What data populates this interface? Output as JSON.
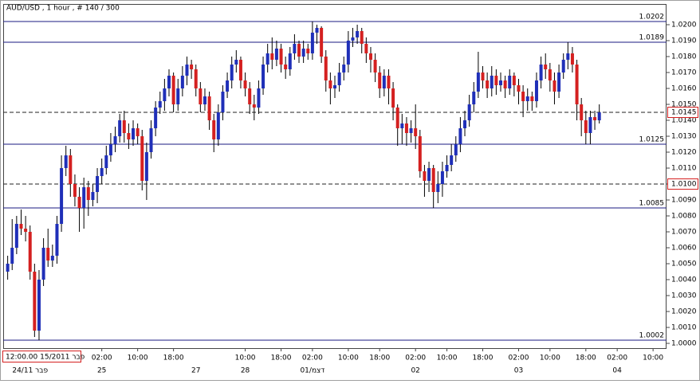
{
  "chart_data": {
    "type": "candlestick",
    "title": "AUD/USD , 1 hour , # 140 / 300",
    "cursor_label": "12:00.00 15/2011 פבר",
    "up_color": "#1f2fb8",
    "down_color": "#d42020",
    "ylim": [
      0.9997,
      1.0213
    ],
    "xlim": [
      -1,
      147
    ],
    "yticks": [
      {
        "value": 1.0,
        "label": "1.0000"
      },
      {
        "value": 1.001,
        "label": "1.0010"
      },
      {
        "value": 1.002,
        "label": "1.0020"
      },
      {
        "value": 1.003,
        "label": "1.0030"
      },
      {
        "value": 1.004,
        "label": "1.0040"
      },
      {
        "value": 1.005,
        "label": "1.0050"
      },
      {
        "value": 1.006,
        "label": "1.0060"
      },
      {
        "value": 1.007,
        "label": "1.0070"
      },
      {
        "value": 1.008,
        "label": "1.0080"
      },
      {
        "value": 1.009,
        "label": "1.0090"
      },
      {
        "value": 1.01,
        "label": "1.0100"
      },
      {
        "value": 1.011,
        "label": "1.0110"
      },
      {
        "value": 1.012,
        "label": "1.0120"
      },
      {
        "value": 1.013,
        "label": "1.0130"
      },
      {
        "value": 1.014,
        "label": "1.0140"
      },
      {
        "value": 1.015,
        "label": "1.0150"
      },
      {
        "value": 1.016,
        "label": "1.0160"
      },
      {
        "value": 1.017,
        "label": "1.0170"
      },
      {
        "value": 1.018,
        "label": "1.0180"
      },
      {
        "value": 1.019,
        "label": "1.0190"
      },
      {
        "value": 1.02,
        "label": "1.0200"
      }
    ],
    "xticks": [
      {
        "value": 21,
        "label": "02:00"
      },
      {
        "value": 29,
        "label": "10:00"
      },
      {
        "value": 37,
        "label": "18:00"
      },
      {
        "value": 53,
        "label": "10:00"
      },
      {
        "value": 61,
        "label": "18:00"
      },
      {
        "value": 68,
        "label": "02:00"
      },
      {
        "value": 76,
        "label": "10:00"
      },
      {
        "value": 83,
        "label": "18:00"
      },
      {
        "value": 91,
        "label": "02:00"
      },
      {
        "value": 98,
        "label": "10:00"
      },
      {
        "value": 106,
        "label": "18:00"
      },
      {
        "value": 114,
        "label": "02:00"
      },
      {
        "value": 121,
        "label": "10:00"
      },
      {
        "value": 129,
        "label": "18:00"
      },
      {
        "value": 136,
        "label": "02:00"
      },
      {
        "value": 144,
        "label": "10:00"
      }
    ],
    "xticks2": [
      {
        "value": 5,
        "label": "24/11 פבר"
      },
      {
        "value": 21,
        "label": "25"
      },
      {
        "value": 42,
        "label": "27"
      },
      {
        "value": 53,
        "label": "28"
      },
      {
        "value": 68,
        "label": "01/דצמ"
      },
      {
        "value": 91,
        "label": "02"
      },
      {
        "value": 114,
        "label": "03"
      },
      {
        "value": 136,
        "label": "04"
      }
    ],
    "levels": [
      {
        "value": 1.0202,
        "label": "1.0202",
        "style": "solid"
      },
      {
        "value": 1.0189,
        "label": "1.0189",
        "style": "solid"
      },
      {
        "value": 1.0145,
        "label": "1.0145",
        "style": "dashed"
      },
      {
        "value": 1.0125,
        "label": "1.0125",
        "style": "solid"
      },
      {
        "value": 1.01,
        "label": "1.0100",
        "style": "dashed"
      },
      {
        "value": 1.0085,
        "label": "1.0085",
        "style": "solid"
      },
      {
        "value": 1.0002,
        "label": "1.0002",
        "style": "solid"
      }
    ],
    "candles": [
      [
        1.0045,
        1.0055,
        1.004,
        1.005
      ],
      [
        1.005,
        1.0078,
        1.0046,
        1.006
      ],
      [
        1.006,
        1.008,
        1.0056,
        1.0075
      ],
      [
        1.0075,
        1.0084,
        1.0068,
        1.0072
      ],
      [
        1.0072,
        1.008,
        1.0064,
        1.007
      ],
      [
        1.007,
        1.0074,
        1.004,
        1.0045
      ],
      [
        1.0045,
        1.005,
        1.0004,
        1.0008
      ],
      [
        1.0008,
        1.0046,
        1.0002,
        1.004
      ],
      [
        1.004,
        1.0066,
        1.0036,
        1.006
      ],
      [
        1.006,
        1.0072,
        1.0048,
        1.0052
      ],
      [
        1.0052,
        1.0062,
        1.0048,
        1.0055
      ],
      [
        1.0055,
        1.008,
        1.005,
        1.0075
      ],
      [
        1.0075,
        1.0118,
        1.007,
        1.011
      ],
      [
        1.011,
        1.0124,
        1.0105,
        1.0118
      ],
      [
        1.0118,
        1.0122,
        1.0092,
        1.01
      ],
      [
        1.01,
        1.0106,
        1.0086,
        1.0092
      ],
      [
        1.0092,
        1.0098,
        1.007,
        1.0085
      ],
      [
        1.0085,
        1.0104,
        1.0072,
        1.0098
      ],
      [
        1.0098,
        1.0102,
        1.008,
        1.009
      ],
      [
        1.009,
        1.01,
        1.0086,
        1.0095
      ],
      [
        1.0095,
        1.011,
        1.0088,
        1.0105
      ],
      [
        1.0105,
        1.0116,
        1.01,
        1.011
      ],
      [
        1.011,
        1.0124,
        1.0106,
        1.0118
      ],
      [
        1.0118,
        1.0132,
        1.0114,
        1.0125
      ],
      [
        1.0125,
        1.0136,
        1.012,
        1.013
      ],
      [
        1.013,
        1.0144,
        1.0126,
        1.014
      ],
      [
        1.014,
        1.0146,
        1.0126,
        1.0132
      ],
      [
        1.0132,
        1.0138,
        1.0122,
        1.0128
      ],
      [
        1.0128,
        1.014,
        1.0124,
        1.0135
      ],
      [
        1.0135,
        1.0138,
        1.0125,
        1.013
      ],
      [
        1.013,
        1.0134,
        1.0096,
        1.0102
      ],
      [
        1.0102,
        1.0126,
        1.009,
        1.012
      ],
      [
        1.012,
        1.014,
        1.0116,
        1.0135
      ],
      [
        1.0135,
        1.0152,
        1.013,
        1.0148
      ],
      [
        1.0148,
        1.0158,
        1.0144,
        1.0152
      ],
      [
        1.0152,
        1.0166,
        1.0146,
        1.016
      ],
      [
        1.016,
        1.0172,
        1.0155,
        1.0168
      ],
      [
        1.0168,
        1.017,
        1.0145,
        1.015
      ],
      [
        1.015,
        1.0166,
        1.0146,
        1.016
      ],
      [
        1.016,
        1.0174,
        1.0155,
        1.0168
      ],
      [
        1.0168,
        1.018,
        1.0162,
        1.0175
      ],
      [
        1.0175,
        1.0178,
        1.0166,
        1.0172
      ],
      [
        1.0172,
        1.0175,
        1.0155,
        1.016
      ],
      [
        1.016,
        1.0164,
        1.0145,
        1.015
      ],
      [
        1.015,
        1.016,
        1.0146,
        1.0155
      ],
      [
        1.0155,
        1.0158,
        1.0134,
        1.014
      ],
      [
        1.014,
        1.0144,
        1.012,
        1.0128
      ],
      [
        1.0128,
        1.015,
        1.0124,
        1.0145
      ],
      [
        1.0145,
        1.0162,
        1.014,
        1.0158
      ],
      [
        1.0158,
        1.017,
        1.0154,
        1.0165
      ],
      [
        1.0165,
        1.018,
        1.016,
        1.0175
      ],
      [
        1.0175,
        1.0184,
        1.017,
        1.0178
      ],
      [
        1.0178,
        1.018,
        1.016,
        1.0165
      ],
      [
        1.0165,
        1.017,
        1.0155,
        1.016
      ],
      [
        1.016,
        1.0164,
        1.0144,
        1.015
      ],
      [
        1.015,
        1.0156,
        1.014,
        1.0148
      ],
      [
        1.0148,
        1.0165,
        1.0144,
        1.016
      ],
      [
        1.016,
        1.018,
        1.0156,
        1.0175
      ],
      [
        1.0175,
        1.0188,
        1.017,
        1.0182
      ],
      [
        1.0182,
        1.0192,
        1.0172,
        1.0178
      ],
      [
        1.0178,
        1.019,
        1.0174,
        1.0185
      ],
      [
        1.0185,
        1.0188,
        1.017,
        1.0175
      ],
      [
        1.0175,
        1.018,
        1.0166,
        1.0172
      ],
      [
        1.0172,
        1.0186,
        1.0168,
        1.0182
      ],
      [
        1.0182,
        1.0194,
        1.0178,
        1.0188
      ],
      [
        1.0188,
        1.019,
        1.0176,
        1.018
      ],
      [
        1.018,
        1.019,
        1.0176,
        1.0185
      ],
      [
        1.0185,
        1.0188,
        1.0178,
        1.0182
      ],
      [
        1.0182,
        1.0202,
        1.0178,
        1.0195
      ],
      [
        1.0195,
        1.02,
        1.0188,
        1.0198
      ],
      [
        1.0198,
        1.0199,
        1.0176,
        1.018
      ],
      [
        1.018,
        1.0184,
        1.0158,
        1.0165
      ],
      [
        1.0165,
        1.017,
        1.015,
        1.016
      ],
      [
        1.016,
        1.0168,
        1.0154,
        1.0162
      ],
      [
        1.0162,
        1.0176,
        1.0158,
        1.017
      ],
      [
        1.017,
        1.018,
        1.0165,
        1.0175
      ],
      [
        1.0175,
        1.0196,
        1.017,
        1.019
      ],
      [
        1.019,
        1.0198,
        1.0186,
        1.0192
      ],
      [
        1.0192,
        1.02,
        1.0188,
        1.0196
      ],
      [
        1.0196,
        1.0198,
        1.0182,
        1.0188
      ],
      [
        1.0188,
        1.0192,
        1.0176,
        1.0182
      ],
      [
        1.0182,
        1.0186,
        1.017,
        1.0178
      ],
      [
        1.0178,
        1.0182,
        1.0164,
        1.017
      ],
      [
        1.017,
        1.0174,
        1.0154,
        1.016
      ],
      [
        1.016,
        1.0172,
        1.0155,
        1.0168
      ],
      [
        1.0168,
        1.0172,
        1.015,
        1.016
      ],
      [
        1.016,
        1.0164,
        1.014,
        1.0148
      ],
      [
        1.0148,
        1.015,
        1.0124,
        1.0135
      ],
      [
        1.0135,
        1.0144,
        1.0125,
        1.0138
      ],
      [
        1.0138,
        1.0142,
        1.0124,
        1.0132
      ],
      [
        1.0132,
        1.014,
        1.0126,
        1.0135
      ],
      [
        1.0135,
        1.015,
        1.0122,
        1.013
      ],
      [
        1.013,
        1.0134,
        1.0104,
        1.0108
      ],
      [
        1.0108,
        1.0112,
        1.0092,
        1.0102
      ],
      [
        1.0102,
        1.0114,
        1.0095,
        1.011
      ],
      [
        1.011,
        1.0112,
        1.0085,
        1.0095
      ],
      [
        1.0095,
        1.0108,
        1.0088,
        1.01
      ],
      [
        1.01,
        1.0114,
        1.0092,
        1.0108
      ],
      [
        1.0108,
        1.0118,
        1.0104,
        1.0112
      ],
      [
        1.0112,
        1.0125,
        1.0108,
        1.0118
      ],
      [
        1.0118,
        1.013,
        1.0114,
        1.0125
      ],
      [
        1.0125,
        1.0142,
        1.012,
        1.0135
      ],
      [
        1.0135,
        1.0146,
        1.013,
        1.014
      ],
      [
        1.014,
        1.0156,
        1.0136,
        1.015
      ],
      [
        1.015,
        1.0164,
        1.0145,
        1.0158
      ],
      [
        1.0158,
        1.0183,
        1.0154,
        1.017
      ],
      [
        1.017,
        1.0174,
        1.016,
        1.0165
      ],
      [
        1.0165,
        1.017,
        1.0154,
        1.016
      ],
      [
        1.016,
        1.0174,
        1.0155,
        1.0168
      ],
      [
        1.0168,
        1.0172,
        1.0156,
        1.0162
      ],
      [
        1.0162,
        1.017,
        1.0158,
        1.0165
      ],
      [
        1.0165,
        1.0168,
        1.0154,
        1.016
      ],
      [
        1.016,
        1.0172,
        1.0156,
        1.0168
      ],
      [
        1.0168,
        1.017,
        1.0155,
        1.0162
      ],
      [
        1.0162,
        1.0166,
        1.015,
        1.0158
      ],
      [
        1.0158,
        1.0162,
        1.0142,
        1.0152
      ],
      [
        1.0152,
        1.016,
        1.0146,
        1.0155
      ],
      [
        1.0155,
        1.0158,
        1.0146,
        1.0152
      ],
      [
        1.0152,
        1.017,
        1.0148,
        1.0165
      ],
      [
        1.0165,
        1.018,
        1.016,
        1.0175
      ],
      [
        1.0175,
        1.0182,
        1.0166,
        1.0172
      ],
      [
        1.0172,
        1.0176,
        1.0158,
        1.0165
      ],
      [
        1.0165,
        1.017,
        1.015,
        1.0158
      ],
      [
        1.0158,
        1.0175,
        1.0154,
        1.017
      ],
      [
        1.017,
        1.0182,
        1.0166,
        1.0178
      ],
      [
        1.0178,
        1.0189,
        1.0172,
        1.0182
      ],
      [
        1.0182,
        1.0186,
        1.017,
        1.0175
      ],
      [
        1.0175,
        1.0178,
        1.014,
        1.015
      ],
      [
        1.015,
        1.0154,
        1.013,
        1.014
      ],
      [
        1.014,
        1.0146,
        1.0125,
        1.0132
      ],
      [
        1.0132,
        1.0146,
        1.0125,
        1.0142
      ],
      [
        1.0142,
        1.0146,
        1.0134,
        1.014
      ],
      [
        1.014,
        1.015,
        1.0138,
        1.0145
      ]
    ]
  }
}
